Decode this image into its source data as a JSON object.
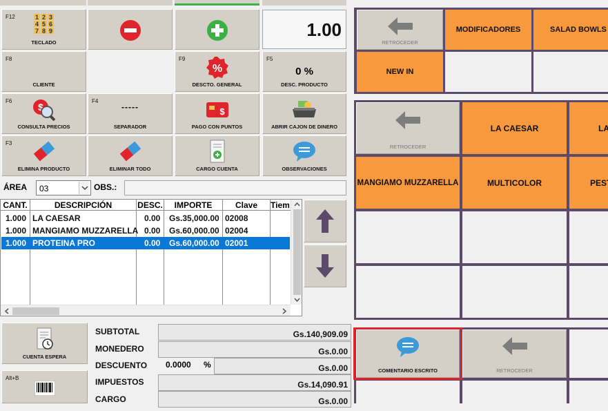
{
  "keypad": {
    "teclado": {
      "fkey": "F12",
      "label": "TECLADO"
    },
    "quantity_display": "1.00",
    "cliente": {
      "fkey": "F8",
      "label": "CLIENTE"
    },
    "descto_general": {
      "fkey": "F9",
      "label": "DESCTO. GENERAL"
    },
    "desc_producto": {
      "fkey": "F5",
      "label": "DESC. PRODUCTO",
      "value": "0 %"
    },
    "consulta_precios": {
      "fkey": "F6",
      "label": "CONSULTA PRECIOS"
    },
    "separador": {
      "fkey": "F4",
      "label": "SEPARADOR",
      "glyph": "-----"
    },
    "pago_con_puntos": {
      "label": "PAGO CON PUNTOS"
    },
    "abrir_cajon": {
      "label": "ABRIR CAJON DE DINERO"
    },
    "elimina_producto": {
      "fkey": "F3",
      "label": "ELIMINA PRODUCTO"
    },
    "eliminar_todo": {
      "label": "ELIMINAR TODO"
    },
    "cargo_cuenta": {
      "label": "CARGO CUENTA"
    },
    "observaciones": {
      "label": "OBSERVACIONES"
    }
  },
  "area": {
    "label": "ÁREA",
    "value": "03",
    "obs_label": "OBS.:",
    "obs_value": ""
  },
  "table": {
    "headers": [
      "CANT.",
      "DESCRIPCIÓN",
      "DESC.",
      "IMPORTE",
      "Clave",
      "Tiem"
    ],
    "rows": [
      {
        "cant": "1.000",
        "desc": "LA CAESAR",
        "descuento": "0.00",
        "importe": "Gs.35,000.00",
        "clave": "02008",
        "selected": false
      },
      {
        "cant": "1.000",
        "desc": "MANGIAMO MUZZARELLA",
        "descuento": "0.00",
        "importe": "Gs.60,000.00",
        "clave": "02004",
        "selected": false
      },
      {
        "cant": "1.000",
        "desc": "PROTEINA PRO",
        "descuento": "0.00",
        "importe": "Gs.60,000.00",
        "clave": "02001",
        "selected": true
      }
    ]
  },
  "bottom_buttons": {
    "cuenta_espera": {
      "label": "CUENTA ESPERA"
    },
    "barcode": {
      "fkey": "Alt+B"
    }
  },
  "totals": {
    "subtotal_label": "SUBTOTAL",
    "subtotal": "Gs.140,909.09",
    "monedero_label": "MONEDERO",
    "monedero": "Gs.0.00",
    "descuento_label": "DESCUENTO",
    "descuento_pct": "0.0000",
    "pct_sign": "%",
    "descuento": "Gs.0.00",
    "impuestos_label": "IMPUESTOS",
    "impuestos": "Gs.14,090.91",
    "cargo_label": "CARGO",
    "cargo": "Gs.0.00"
  },
  "categories": {
    "back_label": "RETROCEDER",
    "items": [
      "MODIFICADORES",
      "SALAD BOWLS",
      "NEW IN"
    ]
  },
  "products": {
    "back_label": "RETROCEDER",
    "items": [
      "LA CAESAR",
      "LA",
      "MANGIAMO MUZZARELLA",
      "MULTICOLOR",
      "PEST"
    ]
  },
  "modifiers": {
    "comentario_label": "COMENTARIO ESCRITO",
    "back_label": "RETROCEDER"
  },
  "colors": {
    "orange": "#f8993d",
    "selection": "#0a78d7",
    "highlight": "#e0242b",
    "panel": "#5b4a69"
  }
}
